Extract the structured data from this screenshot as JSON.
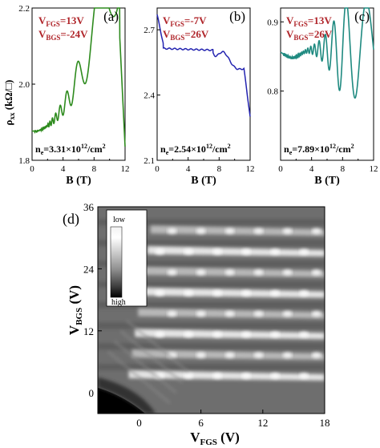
{
  "colors": {
    "annotation_red": "#b0262b",
    "series_a": "#2e8b1e",
    "series_b": "#2323b0",
    "series_c": "#1f8a80"
  },
  "chart_data": [
    {
      "type": "line",
      "panel_label": "(a)",
      "xlabel": "B (T)",
      "ylabel": "ρxx (kΩ/□)",
      "xlim": [
        0,
        12
      ],
      "ylim": [
        1.8,
        2.2
      ],
      "xticks": [
        "0",
        "4",
        "8",
        "12"
      ],
      "yticks": [
        "1.8",
        "2.0",
        "2.2"
      ],
      "annotations": {
        "vfgs": "V FGS=13V",
        "vbgs": "V BGS=-24V",
        "ne": "n e=3.31×10 12/cm 2"
      },
      "series": [
        {
          "x": [
            0,
            1,
            2,
            3,
            4,
            5,
            6,
            7,
            7.8,
            8.5,
            9.5,
            10.4,
            11.1,
            11.6,
            12
          ],
          "y": [
            1.875,
            1.877,
            1.885,
            1.9,
            1.93,
            1.96,
            1.99,
            2.02,
            2.05,
            2.06,
            2.08,
            2.1,
            2.12,
            2.13,
            1.83
          ]
        }
      ]
    },
    {
      "type": "line",
      "panel_label": "(b)",
      "xlabel": "B (T)",
      "ylabel": "",
      "xlim": [
        0,
        12
      ],
      "ylim": [
        2.1,
        2.8
      ],
      "xticks": [
        "0",
        "4",
        "8",
        "12"
      ],
      "yticks": [
        "2.1",
        "2.4",
        "2.7"
      ],
      "annotations": {
        "vfgs": "V FGS=-7V",
        "vbgs": "V BGS=26V",
        "ne": "n e=2.54×10 12/cm 2"
      },
      "series": [
        {
          "x": [
            0,
            0.5,
            1,
            2,
            3,
            4,
            5,
            6,
            7,
            7.5,
            8,
            8.5,
            9,
            9.5,
            10,
            10.5,
            11,
            11.5,
            12
          ],
          "y": [
            2.76,
            2.64,
            2.62,
            2.615,
            2.61,
            2.61,
            2.61,
            2.605,
            2.6,
            2.58,
            2.6,
            2.58,
            2.54,
            2.56,
            2.5,
            2.56,
            2.46,
            2.4,
            2.23
          ]
        }
      ]
    },
    {
      "type": "line",
      "panel_label": "(c)",
      "xlabel": "B (T)",
      "ylabel": "",
      "xlim": [
        0,
        12
      ],
      "ylim": [
        0.7,
        0.92
      ],
      "xticks": [
        "0",
        "4",
        "8",
        "12"
      ],
      "yticks": [
        "0.8",
        "0.9"
      ],
      "annotations": {
        "vfgs": "V FGS=13V",
        "vbgs": "V BGS=26V",
        "ne": "n e=7.89×10 12/cm 2"
      },
      "series": [
        {
          "x": [
            0,
            1,
            2,
            3,
            4,
            5,
            6,
            7,
            7.5,
            8,
            8.5,
            9,
            9.5,
            10,
            10.5,
            11,
            11.5,
            12
          ],
          "y": [
            0.86,
            0.85,
            0.85,
            0.855,
            0.86,
            0.87,
            0.875,
            0.88,
            0.86,
            0.89,
            0.8,
            0.89,
            0.9,
            0.76,
            0.88,
            0.83,
            0.87,
            0.81
          ]
        }
      ]
    },
    {
      "type": "heatmap",
      "panel_label": "(d)",
      "xlabel": "V FGS (V)",
      "ylabel": "V BGS (V)",
      "xlim": [
        -4,
        18
      ],
      "ylim": [
        -4,
        36
      ],
      "xticks": [
        "0",
        "6",
        "12",
        "18"
      ],
      "yticks": [
        "0",
        "12",
        "24",
        "36"
      ],
      "colorbar": {
        "low": "low",
        "high": "high"
      },
      "bands_vbgs": [
        3,
        7,
        11,
        15,
        19,
        23,
        27,
        31
      ]
    }
  ]
}
